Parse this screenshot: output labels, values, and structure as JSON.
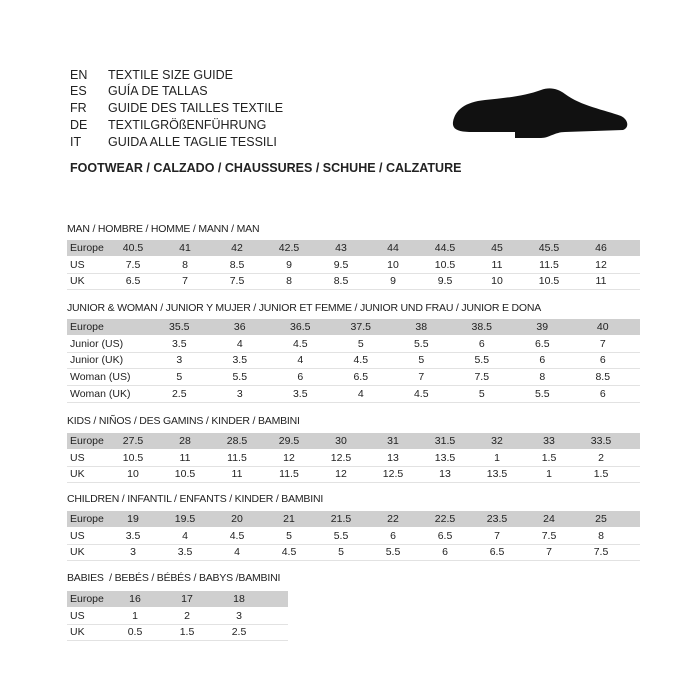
{
  "languages": [
    {
      "code": "EN",
      "text": "TEXTILE SIZE GUIDE"
    },
    {
      "code": "ES",
      "text": "GUÍA DE TALLAS"
    },
    {
      "code": "FR",
      "text": "GUIDE DES TAILLES TEXTILE"
    },
    {
      "code": "DE",
      "text": "TEXTILGRÖßENFÜHRUNG"
    },
    {
      "code": "IT",
      "text": "GUIDA ALLE TAGLIE TESSILI"
    }
  ],
  "subtitle": "FOOTWEAR / CALZADO / CHAUSSURES / SCHUHE / CALZATURE",
  "sections": [
    {
      "title": "MAN / HOMBRE / HOMME / MANN / MAN",
      "rows": [
        [
          "Europe",
          "40.5",
          "41",
          "42",
          "42.5",
          "43",
          "44",
          "44.5",
          "45",
          "45.5",
          "46"
        ],
        [
          "US",
          "7.5",
          "8",
          "8.5",
          "9",
          "9.5",
          "10",
          "10.5",
          "11",
          "11.5",
          "12"
        ],
        [
          "UK",
          "6.5",
          "7",
          "7.5",
          "8",
          "8.5",
          "9",
          "9.5",
          "10",
          "10.5",
          "11"
        ]
      ]
    },
    {
      "title": "JUNIOR & WOMAN / JUNIOR Y MUJER / JUNIOR ET FEMME / JUNIOR UND FRAU / JUNIOR E DONA",
      "rows": [
        [
          "Europe",
          "35.5",
          "36",
          "36.5",
          "37.5",
          "38",
          "38.5",
          "39",
          "40"
        ],
        [
          "Junior (US)",
          "3.5",
          "4",
          "4.5",
          "5",
          "5.5",
          "6",
          "6.5",
          "7"
        ],
        [
          "Junior (UK)",
          "3",
          "3.5",
          "4",
          "4.5",
          "5",
          "5.5",
          "6",
          "6"
        ],
        [
          "Woman (US)",
          "5",
          "5.5",
          "6",
          "6.5",
          "7",
          "7.5",
          "8",
          "8.5"
        ],
        [
          "Woman (UK)",
          "2.5",
          "3",
          "3.5",
          "4",
          "4.5",
          "5",
          "5.5",
          "6"
        ]
      ]
    },
    {
      "title": "KIDS / NIÑOS / DES GAMINS / KINDER / BAMBINI",
      "rows": [
        [
          "Europe",
          "27.5",
          "28",
          "28.5",
          "29.5",
          "30",
          "31",
          "31.5",
          "32",
          "33",
          "33.5"
        ],
        [
          "US",
          "10.5",
          "11",
          "11.5",
          "12",
          "12.5",
          "13",
          "13.5",
          "1",
          "1.5",
          "2"
        ],
        [
          "UK",
          "10",
          "10.5",
          "11",
          "11.5",
          "12",
          "12.5",
          "13",
          "13.5",
          "1",
          "1.5"
        ]
      ]
    },
    {
      "title": "CHILDREN / INFANTIL / ENFANTS / KINDER / BAMBINI",
      "rows": [
        [
          "Europe",
          "19",
          "19.5",
          "20",
          "21",
          "21.5",
          "22",
          "22.5",
          "23.5",
          "24",
          "25"
        ],
        [
          "US",
          "3.5",
          "4",
          "4.5",
          "5",
          "5.5",
          "6",
          "6.5",
          "7",
          "7.5",
          "8"
        ],
        [
          "UK",
          "3",
          "3.5",
          "4",
          "4.5",
          "5",
          "5.5",
          "6",
          "6.5",
          "7",
          "7.5"
        ]
      ]
    },
    {
      "title": "BABIES  / BEBÉS / BÉBÉS / BABYS /BAMBINI",
      "rows": [
        [
          "Europe",
          "16",
          "17",
          "18"
        ],
        [
          "US",
          "1",
          "2",
          "3"
        ],
        [
          "UK",
          "0.5",
          "1.5",
          "2.5"
        ]
      ]
    }
  ]
}
